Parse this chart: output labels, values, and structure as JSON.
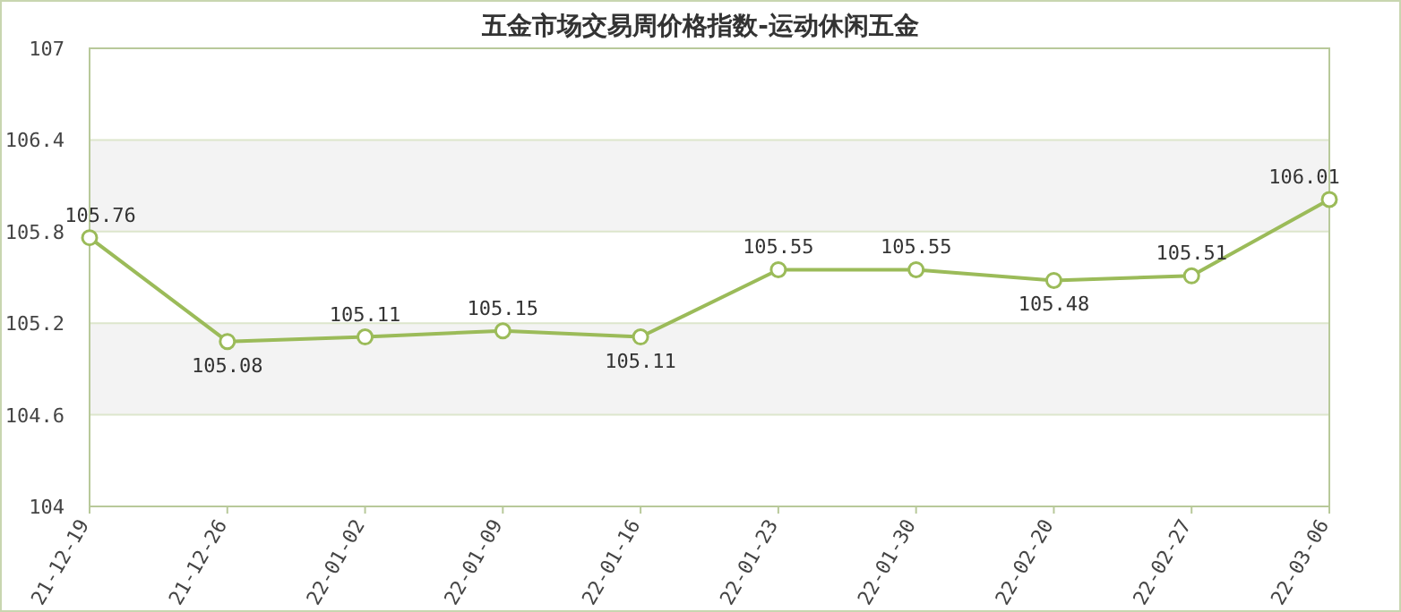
{
  "chart_data": {
    "type": "line",
    "title": "五金市场交易周价格指数-运动休闲五金",
    "categories": [
      "21-12-19",
      "21-12-26",
      "22-01-02",
      "22-01-09",
      "22-01-16",
      "22-01-23",
      "22-01-30",
      "22-02-20",
      "22-02-27",
      "22-03-06"
    ],
    "series": [
      {
        "color": "#9bbb59",
        "values": [
          105.76,
          105.08,
          105.11,
          105.15,
          105.11,
          105.55,
          105.55,
          105.48,
          105.51,
          106.01
        ]
      }
    ],
    "ylim": [
      104,
      107
    ],
    "yticks": [
      104,
      104.6,
      105.2,
      105.8,
      106.4,
      107
    ],
    "grid": "y",
    "marker": "circle",
    "data_labels": true
  }
}
